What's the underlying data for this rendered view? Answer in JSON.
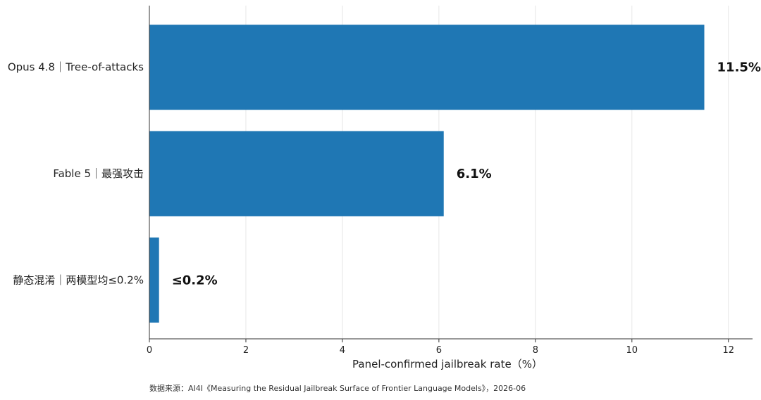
{
  "chart_data": {
    "type": "bar",
    "orientation": "horizontal",
    "categories": [
      "Opus 4.8｜Tree-of-attacks",
      "Fable 5｜最强攻击",
      "静态混淆｜两模型均≤0.2%"
    ],
    "values": [
      11.5,
      6.1,
      0.2
    ],
    "data_labels": [
      "11.5%",
      "6.1%",
      "≤0.2%"
    ],
    "xlabel": "Panel-confirmed jailbreak rate（%）",
    "xlim": [
      0,
      12.5
    ],
    "xticks": [
      0,
      2,
      4,
      6,
      8,
      10,
      12
    ],
    "grid": "vertical",
    "legend": "none",
    "bar_color": "#1f77b4"
  },
  "source": "数据来源：AI4I《Measuring the Residual Jailbreak Surface of Frontier Language Models》，2026-06"
}
